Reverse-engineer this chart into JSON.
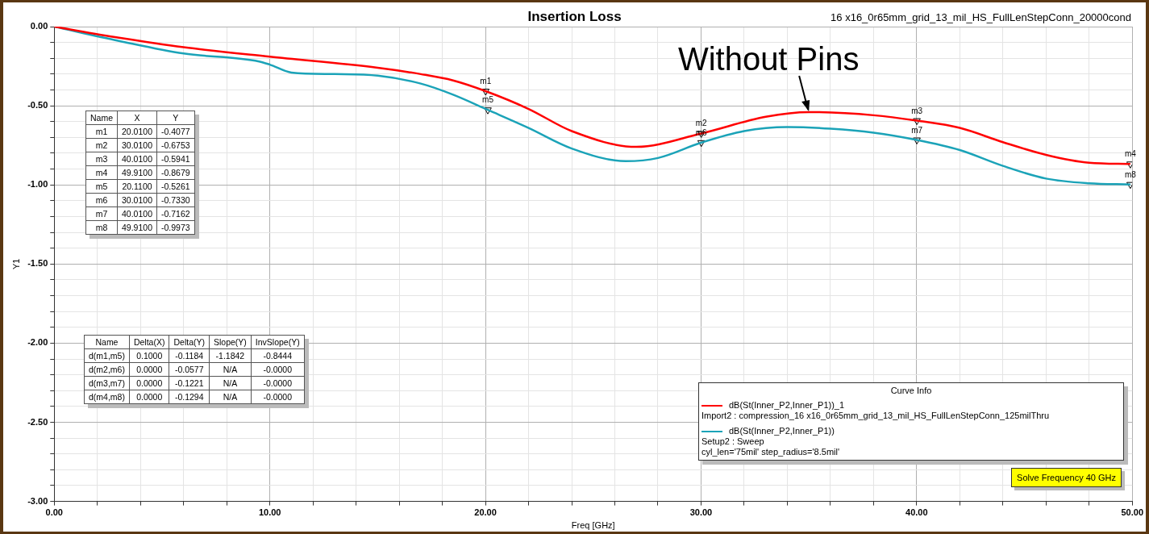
{
  "chart_data": {
    "type": "line",
    "title": "Insertion Loss",
    "subtitle": "16 x16_0r65mm_grid_13_mil_HS_FullLenStepConn_20000cond",
    "xlabel": "Freq [GHz]",
    "ylabel": "Y1",
    "legend_title": "Curve Info",
    "legend": "bottom right",
    "grid": true,
    "line_style": "solid",
    "xlim": [
      0,
      50
    ],
    "ylim": [
      -3,
      0
    ],
    "xticks": [
      {
        "value": 0,
        "label": "0.00"
      },
      {
        "value": 2,
        "label": null
      },
      {
        "value": 4,
        "label": null
      },
      {
        "value": 6,
        "label": null
      },
      {
        "value": 8,
        "label": null
      },
      {
        "value": 10,
        "label": "10.00"
      },
      {
        "value": 12,
        "label": null
      },
      {
        "value": 14,
        "label": null
      },
      {
        "value": 16,
        "label": null
      },
      {
        "value": 18,
        "label": null
      },
      {
        "value": 20,
        "label": "20.00"
      },
      {
        "value": 22,
        "label": null
      },
      {
        "value": 24,
        "label": null
      },
      {
        "value": 26,
        "label": null
      },
      {
        "value": 28,
        "label": null
      },
      {
        "value": 30,
        "label": "30.00"
      },
      {
        "value": 32,
        "label": null
      },
      {
        "value": 34,
        "label": null
      },
      {
        "value": 36,
        "label": null
      },
      {
        "value": 38,
        "label": null
      },
      {
        "value": 40,
        "label": "40.00"
      },
      {
        "value": 42,
        "label": null
      },
      {
        "value": 44,
        "label": null
      },
      {
        "value": 46,
        "label": null
      },
      {
        "value": 48,
        "label": null
      },
      {
        "value": 50,
        "label": "50.00"
      }
    ],
    "yticks": [
      {
        "value": -3,
        "label": "-3.00"
      },
      {
        "value": -2.9,
        "label": null
      },
      {
        "value": -2.8,
        "label": null
      },
      {
        "value": -2.7,
        "label": null
      },
      {
        "value": -2.6,
        "label": null
      },
      {
        "value": -2.5,
        "label": "-2.50"
      },
      {
        "value": -2.4,
        "label": null
      },
      {
        "value": -2.3,
        "label": null
      },
      {
        "value": -2.2,
        "label": null
      },
      {
        "value": -2.1,
        "label": null
      },
      {
        "value": -2,
        "label": "-2.00"
      },
      {
        "value": -1.9,
        "label": null
      },
      {
        "value": -1.8,
        "label": null
      },
      {
        "value": -1.7,
        "label": null
      },
      {
        "value": -1.6,
        "label": null
      },
      {
        "value": -1.5,
        "label": "-1.50"
      },
      {
        "value": -1.4,
        "label": null
      },
      {
        "value": -1.3,
        "label": null
      },
      {
        "value": -1.2,
        "label": null
      },
      {
        "value": -1.1,
        "label": null
      },
      {
        "value": -1,
        "label": "-1.00"
      },
      {
        "value": -0.9,
        "label": null
      },
      {
        "value": -0.8,
        "label": null
      },
      {
        "value": -0.7,
        "label": null
      },
      {
        "value": -0.6,
        "label": null
      },
      {
        "value": -0.5,
        "label": "-0.50"
      },
      {
        "value": -0.4,
        "label": null
      },
      {
        "value": -0.3,
        "label": null
      },
      {
        "value": -0.2,
        "label": null
      },
      {
        "value": -0.1,
        "label": null
      },
      {
        "value": 0,
        "label": "0.00"
      }
    ],
    "series": [
      {
        "name": "dB(St(Inner_P2,Inner_P1))_1\nImport2 : compression_16 x16_0r65mm_grid_13_mil_HS_FullLenStepConn_125milThru",
        "color": "#ff0000",
        "x": [
          0,
          3,
          6,
          10,
          15,
          17,
          18.5,
          20.01,
          22,
          24,
          27,
          30.01,
          33,
          35,
          38,
          40.01,
          42,
          44,
          46,
          48,
          49.91
        ],
        "values": [
          0,
          -0.07,
          -0.13,
          -0.19,
          -0.26,
          -0.3,
          -0.34,
          -0.4077,
          -0.52,
          -0.66,
          -0.76,
          -0.6753,
          -0.57,
          -0.54,
          -0.56,
          -0.5941,
          -0.64,
          -0.73,
          -0.81,
          -0.86,
          -0.8679
        ]
      },
      {
        "name": "dB(St(Inner_P2,Inner_P1))\nSetup2 : Sweep\ncyl_len='75mil' step_radius='8.5mil'",
        "color": "#1ba3b8",
        "x": [
          0,
          3,
          6,
          9.5,
          10,
          11,
          13,
          15,
          17,
          18.5,
          20.11,
          22,
          24,
          26.5,
          28,
          30.01,
          32,
          34,
          36,
          38,
          40.01,
          42,
          44,
          46,
          48,
          49.91
        ],
        "values": [
          0,
          -0.09,
          -0.17,
          -0.22,
          -0.24,
          -0.29,
          -0.3,
          -0.31,
          -0.36,
          -0.43,
          -0.5261,
          -0.64,
          -0.77,
          -0.85,
          -0.83,
          -0.733,
          -0.66,
          -0.635,
          -0.645,
          -0.67,
          -0.7162,
          -0.78,
          -0.88,
          -0.96,
          -0.99,
          -0.9973
        ]
      },
      {
        "type": "scatter",
        "color": "#000000",
        "marker": "triangle",
        "x": [
          20.01,
          30.01,
          40.01,
          49.91,
          20.11,
          30.01,
          40.01,
          49.91
        ],
        "values": [
          -0.4077,
          -0.6753,
          -0.5941,
          -0.8679,
          -0.5261,
          -0.733,
          -0.7162,
          -0.9973
        ],
        "value_labels": [
          "m1",
          "m2",
          "m3",
          "m4",
          "m5",
          "m6",
          "m7",
          "m8"
        ]
      }
    ],
    "annotations": [
      {
        "text": "Without Pins",
        "x": 35,
        "y": -0.54
      },
      "Name\tX\tY\nm1\t20.0100\t-0.4077\nm2\t30.0100\t-0.6753\nm3\t40.0100\t-0.5941\nm4\t49.9100\t-0.8679\nm5\t20.1100\t-0.5261\nm6\t30.0100\t-0.7330\nm7\t40.0100\t-0.7162\nm8\t49.9100\t-0.9973",
      "Name\tDelta(X)\tDelta(Y)\tSlope(Y)\tInvSlope(Y)\nd(m1,m5)\t0.1000\t-0.1184\t-1.1842\t-0.8444\nd(m2,m6)\t0.0000\t-0.0577\tN/A\t-0.0000\nd(m3,m7)\t0.0000\t-0.1221\tN/A\t-0.0000\nd(m4,m8)\t0.0000\t-0.1294\tN/A\t-0.0000",
      "Solve Frequency 40 GHz"
    ]
  }
}
